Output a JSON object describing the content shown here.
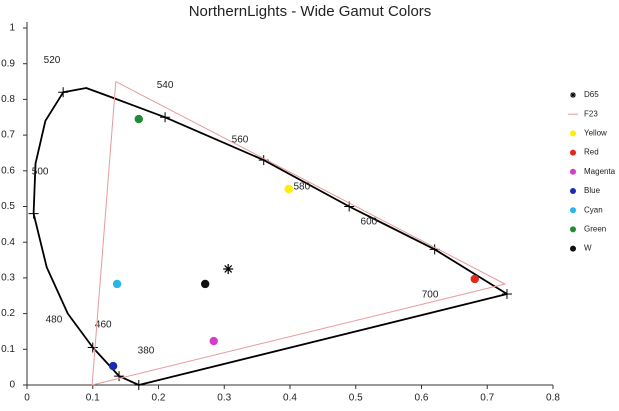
{
  "chart_data": {
    "type": "scatter",
    "title": "NorthernLights - Wide Gamut Colors",
    "xlim": [
      0,
      0.8
    ],
    "ylim": [
      0,
      1
    ],
    "xticks": [
      0,
      0.1,
      0.2,
      0.3,
      0.4,
      0.5,
      0.6,
      0.7,
      0.8
    ],
    "yticks": [
      0,
      0.1,
      0.2,
      0.3,
      0.4,
      0.5,
      0.6,
      0.7,
      0.8,
      0.9,
      1
    ],
    "locus": {
      "color": "#000000",
      "x": [
        0.17,
        0.14,
        0.1,
        0.062,
        0.03,
        0.01,
        0.013,
        0.028,
        0.055,
        0.09,
        0.13,
        0.21,
        0.36,
        0.49,
        0.62,
        0.73,
        0.17
      ],
      "y": [
        0.0,
        0.025,
        0.105,
        0.2,
        0.33,
        0.48,
        0.62,
        0.74,
        0.82,
        0.832,
        0.805,
        0.75,
        0.63,
        0.5,
        0.38,
        0.255,
        0.0
      ]
    },
    "locus_ticks": {
      "x": [
        0.17,
        0.14,
        0.1,
        0.01,
        0.055,
        0.21,
        0.36,
        0.49,
        0.62,
        0.73
      ],
      "y": [
        0.0,
        0.025,
        0.105,
        0.48,
        0.82,
        0.75,
        0.63,
        0.5,
        0.38,
        0.255
      ]
    },
    "annotations": [
      {
        "text": "520",
        "x": 0.038,
        "y": 0.91
      },
      {
        "text": "540",
        "x": 0.21,
        "y": 0.84
      },
      {
        "text": "560",
        "x": 0.324,
        "y": 0.686
      },
      {
        "text": "580",
        "x": 0.418,
        "y": 0.555
      },
      {
        "text": "600",
        "x": 0.52,
        "y": 0.457
      },
      {
        "text": "700",
        "x": 0.613,
        "y": 0.252
      },
      {
        "text": "500",
        "x": 0.02,
        "y": 0.597
      },
      {
        "text": "480",
        "x": 0.041,
        "y": 0.182
      },
      {
        "text": "460",
        "x": 0.116,
        "y": 0.168
      },
      {
        "text": "380",
        "x": 0.181,
        "y": 0.095
      }
    ],
    "series": [
      {
        "name": "D65",
        "color": "#000000",
        "marker": "star",
        "x": [
          0.306
        ],
        "values": [
          0.325
        ]
      },
      {
        "name": "F23",
        "color": "#e89a9a",
        "marker": "line",
        "x": [
          0.135,
          0.727,
          0.099,
          0.135
        ],
        "values": [
          0.85,
          0.283,
          0.0,
          0.85
        ]
      },
      {
        "name": "Yellow",
        "color": "#ffee00",
        "marker": "dot",
        "x": [
          0.398
        ],
        "values": [
          0.549
        ]
      },
      {
        "name": "Red",
        "color": "#e0281e",
        "marker": "dot",
        "x": [
          0.681
        ],
        "values": [
          0.297
        ]
      },
      {
        "name": "Magenta",
        "color": "#d63cc8",
        "marker": "dot",
        "x": [
          0.284
        ],
        "values": [
          0.123
        ]
      },
      {
        "name": "Blue",
        "color": "#1a2ab4",
        "marker": "dot",
        "x": [
          0.131
        ],
        "values": [
          0.053
        ]
      },
      {
        "name": "Cyan",
        "color": "#2ab4ec",
        "marker": "dot",
        "x": [
          0.137
        ],
        "values": [
          0.283
        ]
      },
      {
        "name": "Green",
        "color": "#1e8c32",
        "marker": "dot",
        "x": [
          0.17
        ],
        "values": [
          0.745
        ]
      },
      {
        "name": "W",
        "color": "#111111",
        "marker": "dot",
        "x": [
          0.271
        ],
        "values": [
          0.283
        ]
      }
    ]
  }
}
